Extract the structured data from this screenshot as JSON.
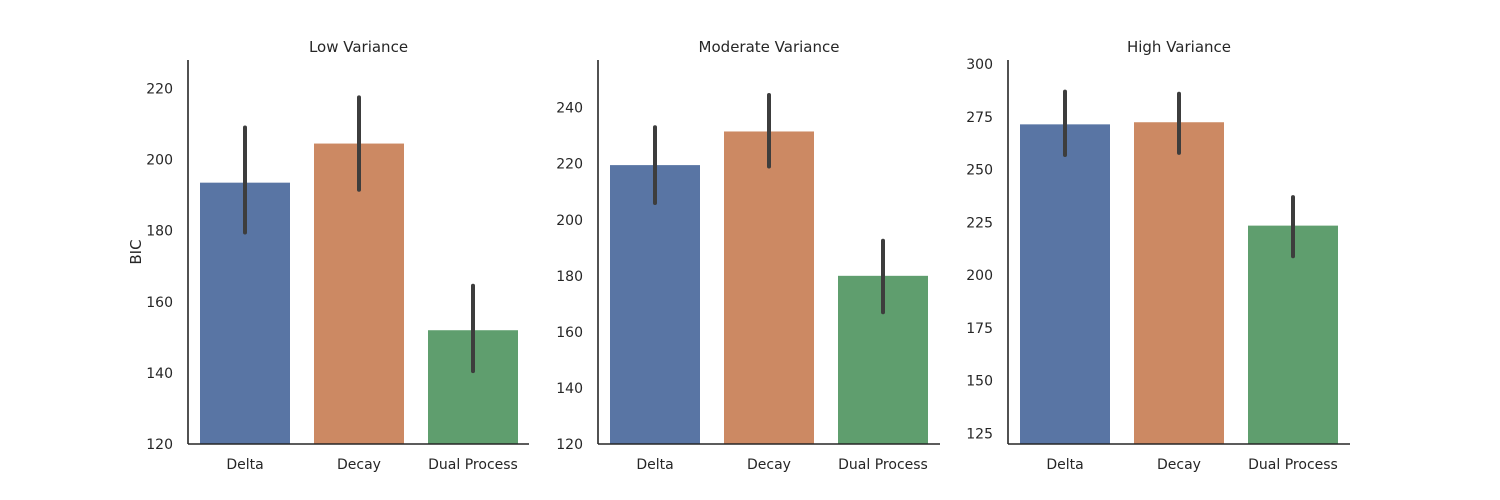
{
  "chart_data": [
    {
      "type": "bar",
      "title": "Low Variance",
      "xlabel": "",
      "ylabel": "BIC",
      "categories": [
        "Delta",
        "Decay",
        "Dual Process"
      ],
      "values": [
        193.5,
        204.5,
        152
      ],
      "error_low": [
        179.5,
        191.5,
        140.5
      ],
      "error_high": [
        209,
        217.5,
        164.5
      ],
      "colors": [
        "#5975a4",
        "#cc8963",
        "#5f9e6e"
      ],
      "ylim": [
        120,
        228
      ],
      "yticks": [
        120,
        140,
        160,
        180,
        200,
        220
      ],
      "grid": false
    },
    {
      "type": "bar",
      "title": "Moderate Variance",
      "xlabel": "",
      "ylabel": "",
      "categories": [
        "Delta",
        "Decay",
        "Dual Process"
      ],
      "values": [
        219.5,
        231.5,
        180
      ],
      "error_low": [
        206,
        219,
        167
      ],
      "error_high": [
        233,
        244.5,
        192.5
      ],
      "colors": [
        "#5975a4",
        "#cc8963",
        "#5f9e6e"
      ],
      "ylim": [
        120,
        257
      ],
      "yticks": [
        120,
        140,
        160,
        180,
        200,
        220,
        240
      ],
      "grid": false
    },
    {
      "type": "bar",
      "title": "High Variance",
      "xlabel": "",
      "ylabel": "",
      "categories": [
        "Delta",
        "Decay",
        "Dual Process"
      ],
      "values": [
        271.5,
        272.5,
        223.5
      ],
      "error_low": [
        257,
        258,
        209
      ],
      "error_high": [
        287,
        286,
        237
      ],
      "colors": [
        "#5975a4",
        "#cc8963",
        "#5f9e6e"
      ],
      "ylim": [
        120,
        302
      ],
      "yticks": [
        125,
        150,
        175,
        200,
        225,
        250,
        275,
        300
      ],
      "grid": false
    }
  ]
}
